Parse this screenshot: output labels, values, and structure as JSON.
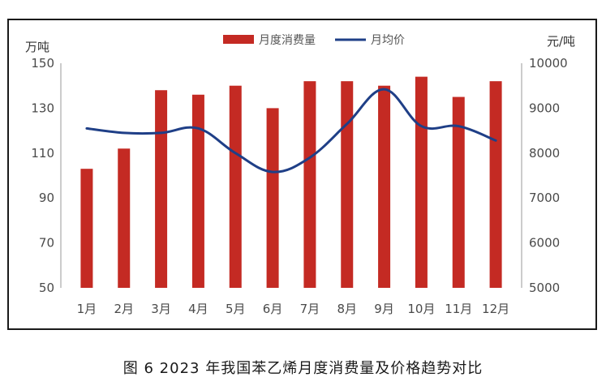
{
  "caption": "图 6   2023 年我国苯乙烯月度消费量及价格趋势对比",
  "chart_data": {
    "type": "bar",
    "categories": [
      "1月",
      "2月",
      "3月",
      "4月",
      "5月",
      "6月",
      "7月",
      "8月",
      "9月",
      "10月",
      "11月",
      "12月"
    ],
    "series": [
      {
        "name": "月度消费量",
        "type": "bar",
        "axis": "left",
        "color": "#c42a23",
        "values": [
          103,
          112,
          138,
          136,
          140,
          130,
          142,
          142,
          140,
          144,
          135,
          142
        ]
      },
      {
        "name": "月均价",
        "type": "line",
        "axis": "right",
        "color": "#1f3f87",
        "values": [
          8550,
          8450,
          8450,
          8550,
          8000,
          7580,
          7900,
          8650,
          9420,
          8600,
          8600,
          8280
        ]
      }
    ],
    "left_axis": {
      "unit": "万吨",
      "ylim": [
        50,
        150
      ],
      "ticks": [
        "50",
        "70",
        "90",
        "110",
        "130",
        "150"
      ]
    },
    "right_axis": {
      "unit": "元/吨",
      "ylim": [
        5000,
        10000
      ],
      "ticks": [
        "5000",
        "6000",
        "7000",
        "8000",
        "9000",
        "10000"
      ]
    },
    "legend": "top-center",
    "grid": false
  }
}
